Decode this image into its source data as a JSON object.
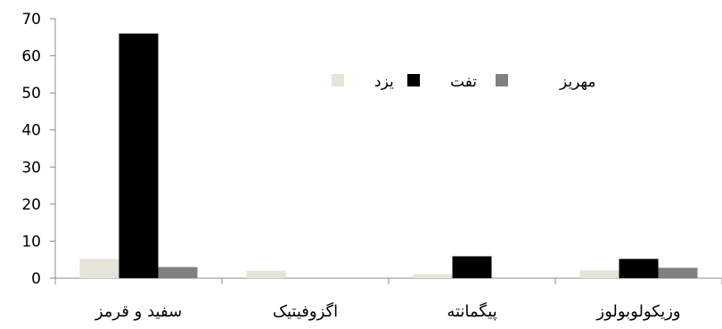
{
  "chart_data": {
    "type": "bar",
    "categories": [
      "سفید و قرمز",
      "اگزوفیتیک",
      "پیگمانته",
      "وزیکولوبولوز"
    ],
    "series": [
      {
        "name": "یزد",
        "values": [
          5.2,
          2.0,
          1.1,
          2.1
        ],
        "color": "#e6e3d8"
      },
      {
        "name": "تفت",
        "values": [
          66,
          0,
          5.9,
          5.2
        ],
        "color": "#000000"
      },
      {
        "name": "مهریز",
        "values": [
          3.0,
          0,
          0,
          2.8
        ],
        "color": "#808080"
      }
    ],
    "ylim": [
      0,
      70
    ],
    "yticks": [
      "0",
      "10",
      "20",
      "30",
      "40",
      "50",
      "60",
      "70"
    ],
    "title": "",
    "xlabel": "",
    "ylabel": "",
    "grid": false,
    "legend_position": "upper-middle"
  }
}
